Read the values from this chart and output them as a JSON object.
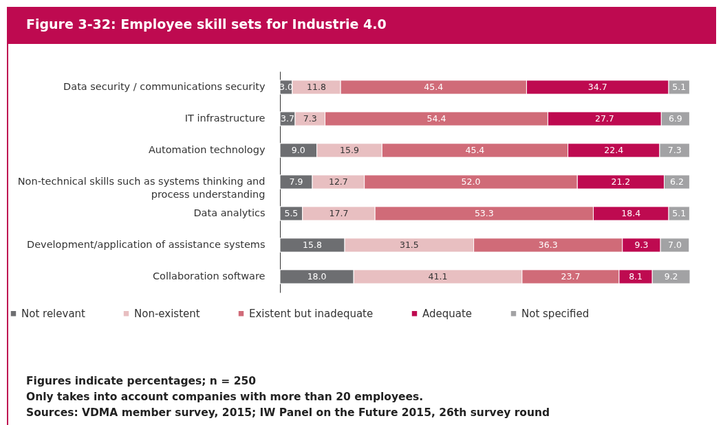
{
  "chart_data": {
    "type": "bar",
    "orientation": "horizontal",
    "stacked": true,
    "data_labels": true,
    "legend": "bottom",
    "title": "Figure 3-32: Employee skill sets for Industrie 4.0",
    "categories": [
      "Data security / communications security",
      "IT infrastructure",
      "Automation technology",
      "Non-technical skills such as systems thinking and process understanding",
      "Data analytics",
      "Development/application of assistance systems",
      "Collaboration software"
    ],
    "series": [
      {
        "name": "Not relevant",
        "color": "#6d6e71",
        "values": [
          3.0,
          3.7,
          9.0,
          7.9,
          5.5,
          15.8,
          18.0
        ],
        "value_labels": [
          "3.0",
          "3.7",
          "9.0",
          "7.9",
          "5.5",
          "15.8",
          "18.0"
        ]
      },
      {
        "name": "Non-existent",
        "color": "#e8bfc1",
        "values": [
          11.8,
          7.3,
          15.9,
          12.7,
          17.7,
          31.5,
          41.1
        ],
        "value_labels": [
          "11.8",
          "7.3",
          "15.9",
          "12.7",
          "17.7",
          "31.5",
          "41.1"
        ]
      },
      {
        "name": "Existent but inadequate",
        "color": "#d06b78",
        "values": [
          45.4,
          54.4,
          45.4,
          52.0,
          53.3,
          36.3,
          23.7
        ],
        "value_labels": [
          "45.4",
          "54.4",
          "45.4",
          "52.0",
          "53.3",
          "36.3",
          "23.7"
        ]
      },
      {
        "name": "Adequate",
        "color": "#be0a50",
        "values": [
          34.7,
          27.7,
          22.4,
          21.2,
          18.4,
          9.3,
          8.1
        ],
        "value_labels": [
          "34.7",
          "27.7",
          "22.4",
          "21.2",
          "18.4",
          "9.3",
          "8.1"
        ]
      },
      {
        "name": "Not specified",
        "color": "#a2a2a4",
        "values": [
          5.1,
          6.9,
          7.3,
          6.2,
          5.1,
          7.0,
          9.2
        ],
        "value_labels": [
          "5.1",
          "6.9",
          "7.3",
          "6.2",
          "5.1",
          "7.0",
          "9.2"
        ]
      }
    ],
    "annotations": [
      "Figures indicate percentages; n = 250",
      "Only takes into account companies with more than 20 employees.",
      "Sources: VDMA member survey, 2015; IW Panel on the Future 2015, 26th survey round"
    ]
  }
}
